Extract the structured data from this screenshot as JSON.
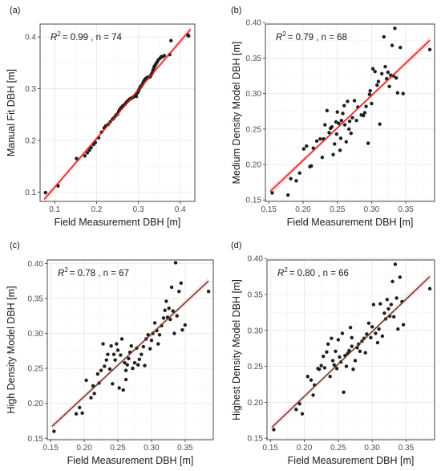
{
  "chart_data": [
    {
      "type": "scatter",
      "panel_tag": "(a)",
      "r2_label": "R",
      "r2_sup": "2",
      "r2_value": "= 0.99 , n =  74",
      "xlabel": "Field Measurement DBH [m]",
      "ylabel": "Manual Fit DBH [m]",
      "xlim": [
        0.065,
        0.435
      ],
      "ylim": [
        0.082,
        0.425
      ],
      "xticks": [
        0.1,
        0.2,
        0.3,
        0.4
      ],
      "yticks": [
        0.1,
        0.2,
        0.3,
        0.4
      ],
      "xtick_labels": [
        "0.1",
        "0.2",
        "0.3",
        "0.4"
      ],
      "ytick_labels": [
        "0.1",
        "0.2",
        "0.3",
        "0.4"
      ],
      "grid": true,
      "line_color": "#e31a1c",
      "band_color": "#f6c7c7",
      "fit": {
        "x0": 0.075,
        "y0": 0.086,
        "x1": 0.425,
        "y1": 0.415
      },
      "points": [
        [
          0.078,
          0.099
        ],
        [
          0.108,
          0.112
        ],
        [
          0.152,
          0.165
        ],
        [
          0.172,
          0.17
        ],
        [
          0.178,
          0.176
        ],
        [
          0.183,
          0.181
        ],
        [
          0.187,
          0.186
        ],
        [
          0.193,
          0.192
        ],
        [
          0.197,
          0.196
        ],
        [
          0.205,
          0.205
        ],
        [
          0.212,
          0.216
        ],
        [
          0.218,
          0.224
        ],
        [
          0.222,
          0.228
        ],
        [
          0.228,
          0.231
        ],
        [
          0.233,
          0.236
        ],
        [
          0.238,
          0.241
        ],
        [
          0.241,
          0.243
        ],
        [
          0.245,
          0.247
        ],
        [
          0.248,
          0.25
        ],
        [
          0.25,
          0.251
        ],
        [
          0.253,
          0.256
        ],
        [
          0.255,
          0.259
        ],
        [
          0.258,
          0.263
        ],
        [
          0.262,
          0.266
        ],
        [
          0.265,
          0.268
        ],
        [
          0.268,
          0.27
        ],
        [
          0.271,
          0.273
        ],
        [
          0.273,
          0.275
        ],
        [
          0.276,
          0.277
        ],
        [
          0.278,
          0.279
        ],
        [
          0.281,
          0.281
        ],
        [
          0.283,
          0.281
        ],
        [
          0.286,
          0.283
        ],
        [
          0.288,
          0.284
        ],
        [
          0.291,
          0.286
        ],
        [
          0.293,
          0.288
        ],
        [
          0.295,
          0.29
        ],
        [
          0.297,
          0.292
        ],
        [
          0.299,
          0.293
        ],
        [
          0.3,
          0.296
        ],
        [
          0.302,
          0.299
        ],
        [
          0.304,
          0.302
        ],
        [
          0.305,
          0.304
        ],
        [
          0.307,
          0.305
        ],
        [
          0.309,
          0.308
        ],
        [
          0.311,
          0.31
        ],
        [
          0.312,
          0.313
        ],
        [
          0.314,
          0.316
        ],
        [
          0.316,
          0.318
        ],
        [
          0.318,
          0.32
        ],
        [
          0.32,
          0.321
        ],
        [
          0.322,
          0.322
        ],
        [
          0.325,
          0.322
        ],
        [
          0.328,
          0.323
        ],
        [
          0.33,
          0.326
        ],
        [
          0.332,
          0.329
        ],
        [
          0.334,
          0.332
        ],
        [
          0.335,
          0.336
        ],
        [
          0.337,
          0.34
        ],
        [
          0.338,
          0.343
        ],
        [
          0.34,
          0.345
        ],
        [
          0.342,
          0.348
        ],
        [
          0.345,
          0.352
        ],
        [
          0.348,
          0.356
        ],
        [
          0.352,
          0.359
        ],
        [
          0.355,
          0.362
        ],
        [
          0.358,
          0.362
        ],
        [
          0.362,
          0.364
        ],
        [
          0.375,
          0.366
        ],
        [
          0.378,
          0.393
        ],
        [
          0.418,
          0.404
        ],
        [
          0.42,
          0.402
        ],
        [
          0.295,
          0.285
        ],
        [
          0.262,
          0.265
        ]
      ]
    },
    {
      "type": "scatter",
      "panel_tag": "(b)",
      "r2_label": "R",
      "r2_sup": "2",
      "r2_value": "= 0.79 , n =  68",
      "xlabel": "Field Measurement DBH [m]",
      "ylabel": "Medium Density Model DBH [m]",
      "xlim": [
        0.145,
        0.392
      ],
      "ylim": [
        0.148,
        0.398
      ],
      "xticks": [
        0.15,
        0.2,
        0.25,
        0.3,
        0.35
      ],
      "yticks": [
        0.15,
        0.2,
        0.25,
        0.3,
        0.35,
        0.4
      ],
      "xtick_labels": [
        "0.15",
        "0.20",
        "0.25",
        "0.30",
        "0.35"
      ],
      "ytick_labels": [
        "0.15",
        "0.20",
        "0.25",
        "0.30",
        "0.35",
        "0.40"
      ],
      "grid": true,
      "line_color": "#e31a1c",
      "band_color": "#f6c7c7",
      "fit": {
        "x0": 0.152,
        "y0": 0.162,
        "x1": 0.385,
        "y1": 0.375
      },
      "points": [
        [
          0.155,
          0.16
        ],
        [
          0.178,
          0.157
        ],
        [
          0.182,
          0.18
        ],
        [
          0.19,
          0.177
        ],
        [
          0.195,
          0.188
        ],
        [
          0.201,
          0.222
        ],
        [
          0.205,
          0.226
        ],
        [
          0.21,
          0.197
        ],
        [
          0.212,
          0.198
        ],
        [
          0.215,
          0.223
        ],
        [
          0.22,
          0.233
        ],
        [
          0.225,
          0.236
        ],
        [
          0.228,
          0.21
        ],
        [
          0.23,
          0.236
        ],
        [
          0.232,
          0.256
        ],
        [
          0.235,
          0.276
        ],
        [
          0.238,
          0.245
        ],
        [
          0.24,
          0.251
        ],
        [
          0.242,
          0.253
        ],
        [
          0.244,
          0.214
        ],
        [
          0.246,
          0.229
        ],
        [
          0.248,
          0.26
        ],
        [
          0.249,
          0.243
        ],
        [
          0.25,
          0.274
        ],
        [
          0.252,
          0.258
        ],
        [
          0.254,
          0.22
        ],
        [
          0.255,
          0.237
        ],
        [
          0.256,
          0.262
        ],
        [
          0.258,
          0.272
        ],
        [
          0.26,
          0.283
        ],
        [
          0.261,
          0.256
        ],
        [
          0.263,
          0.232
        ],
        [
          0.265,
          0.289
        ],
        [
          0.267,
          0.25
        ],
        [
          0.268,
          0.261
        ],
        [
          0.27,
          0.244
        ],
        [
          0.272,
          0.266
        ],
        [
          0.275,
          0.29
        ],
        [
          0.278,
          0.262
        ],
        [
          0.28,
          0.281
        ],
        [
          0.285,
          0.27
        ],
        [
          0.288,
          0.269
        ],
        [
          0.29,
          0.273
        ],
        [
          0.292,
          0.282
        ],
        [
          0.295,
          0.23
        ],
        [
          0.297,
          0.299
        ],
        [
          0.298,
          0.304
        ],
        [
          0.3,
          0.286
        ],
        [
          0.302,
          0.335
        ],
        [
          0.305,
          0.331
        ],
        [
          0.308,
          0.312
        ],
        [
          0.31,
          0.317
        ],
        [
          0.312,
          0.257
        ],
        [
          0.315,
          0.328
        ],
        [
          0.318,
          0.38
        ],
        [
          0.32,
          0.338
        ],
        [
          0.322,
          0.321
        ],
        [
          0.324,
          0.33
        ],
        [
          0.326,
          0.31
        ],
        [
          0.328,
          0.326
        ],
        [
          0.33,
          0.368
        ],
        [
          0.332,
          0.325
        ],
        [
          0.334,
          0.392
        ],
        [
          0.336,
          0.322
        ],
        [
          0.338,
          0.301
        ],
        [
          0.342,
          0.365
        ],
        [
          0.346,
          0.3
        ],
        [
          0.385,
          0.362
        ]
      ]
    },
    {
      "type": "scatter",
      "panel_tag": "(c)",
      "r2_label": "R",
      "r2_sup": "2",
      "r2_value": "= 0.78 , n =  67",
      "xlabel": "Field Measurement DBH [m]",
      "ylabel": "High Density Model DBH [m]",
      "xlim": [
        0.145,
        0.392
      ],
      "ylim": [
        0.148,
        0.405
      ],
      "xticks": [
        0.15,
        0.2,
        0.25,
        0.3,
        0.35
      ],
      "yticks": [
        0.15,
        0.2,
        0.25,
        0.3,
        0.35,
        0.4
      ],
      "xtick_labels": [
        "0.15",
        "0.20",
        "0.25",
        "0.30",
        "0.35"
      ],
      "ytick_labels": [
        "0.15",
        "0.20",
        "0.25",
        "0.30",
        "0.35",
        "0.40"
      ],
      "grid": true,
      "line_color": "#6b3a1f",
      "band_color": "#f6d3dc",
      "fit": {
        "x0": 0.152,
        "y0": 0.167,
        "x1": 0.385,
        "y1": 0.375
      },
      "points": [
        [
          0.155,
          0.16
        ],
        [
          0.188,
          0.185
        ],
        [
          0.193,
          0.194
        ],
        [
          0.197,
          0.186
        ],
        [
          0.203,
          0.233
        ],
        [
          0.21,
          0.208
        ],
        [
          0.213,
          0.225
        ],
        [
          0.215,
          0.214
        ],
        [
          0.22,
          0.242
        ],
        [
          0.222,
          0.229
        ],
        [
          0.225,
          0.247
        ],
        [
          0.228,
          0.285
        ],
        [
          0.23,
          0.253
        ],
        [
          0.233,
          0.262
        ],
        [
          0.235,
          0.27
        ],
        [
          0.238,
          0.249
        ],
        [
          0.24,
          0.282
        ],
        [
          0.242,
          0.228
        ],
        [
          0.244,
          0.27
        ],
        [
          0.246,
          0.262
        ],
        [
          0.248,
          0.285
        ],
        [
          0.25,
          0.276
        ],
        [
          0.252,
          0.222
        ],
        [
          0.254,
          0.269
        ],
        [
          0.256,
          0.292
        ],
        [
          0.258,
          0.219
        ],
        [
          0.26,
          0.258
        ],
        [
          0.262,
          0.234
        ],
        [
          0.264,
          0.255
        ],
        [
          0.266,
          0.264
        ],
        [
          0.268,
          0.273
        ],
        [
          0.27,
          0.282
        ],
        [
          0.272,
          0.25
        ],
        [
          0.275,
          0.258
        ],
        [
          0.278,
          0.279
        ],
        [
          0.28,
          0.255
        ],
        [
          0.282,
          0.263
        ],
        [
          0.285,
          0.27
        ],
        [
          0.288,
          0.281
        ],
        [
          0.29,
          0.254
        ],
        [
          0.292,
          0.292
        ],
        [
          0.295,
          0.298
        ],
        [
          0.298,
          0.278
        ],
        [
          0.3,
          0.29
        ],
        [
          0.302,
          0.3
        ],
        [
          0.305,
          0.315
        ],
        [
          0.308,
          0.304
        ],
        [
          0.31,
          0.285
        ],
        [
          0.312,
          0.298
        ],
        [
          0.315,
          0.311
        ],
        [
          0.318,
          0.322
        ],
        [
          0.32,
          0.333
        ],
        [
          0.322,
          0.346
        ],
        [
          0.324,
          0.323
        ],
        [
          0.326,
          0.336
        ],
        [
          0.328,
          0.32
        ],
        [
          0.33,
          0.366
        ],
        [
          0.332,
          0.332
        ],
        [
          0.334,
          0.3
        ],
        [
          0.336,
          0.401
        ],
        [
          0.338,
          0.325
        ],
        [
          0.341,
          0.36
        ],
        [
          0.344,
          0.372
        ],
        [
          0.346,
          0.305
        ],
        [
          0.35,
          0.312
        ],
        [
          0.385,
          0.36
        ],
        [
          0.262,
          0.247
        ]
      ]
    },
    {
      "type": "scatter",
      "panel_tag": "(d)",
      "r2_label": "R",
      "r2_sup": "2",
      "r2_value": "= 0.80 , n =  66",
      "xlabel": "Field Measurement DBH [m]",
      "ylabel": "Highest Density Model DBH [m]",
      "xlim": [
        0.145,
        0.392
      ],
      "ylim": [
        0.148,
        0.398
      ],
      "xticks": [
        0.15,
        0.2,
        0.25,
        0.3,
        0.35
      ],
      "yticks": [
        0.15,
        0.2,
        0.25,
        0.3,
        0.35,
        0.4
      ],
      "xtick_labels": [
        "0.15",
        "0.20",
        "0.25",
        "0.30",
        "0.35"
      ],
      "ytick_labels": [
        "0.15",
        "0.20",
        "0.25",
        "0.30",
        "0.35",
        "0.40"
      ],
      "grid": true,
      "line_color": "#6b3a1f",
      "band_color": "#f6d3dc",
      "fit": {
        "x0": 0.152,
        "y0": 0.165,
        "x1": 0.385,
        "y1": 0.375
      },
      "points": [
        [
          0.155,
          0.162
        ],
        [
          0.188,
          0.19
        ],
        [
          0.193,
          0.198
        ],
        [
          0.197,
          0.184
        ],
        [
          0.205,
          0.236
        ],
        [
          0.21,
          0.231
        ],
        [
          0.213,
          0.21
        ],
        [
          0.215,
          0.224
        ],
        [
          0.22,
          0.247
        ],
        [
          0.222,
          0.246
        ],
        [
          0.225,
          0.251
        ],
        [
          0.228,
          0.264
        ],
        [
          0.23,
          0.248
        ],
        [
          0.233,
          0.27
        ],
        [
          0.235,
          0.281
        ],
        [
          0.238,
          0.236
        ],
        [
          0.24,
          0.289
        ],
        [
          0.242,
          0.258
        ],
        [
          0.244,
          0.252
        ],
        [
          0.246,
          0.271
        ],
        [
          0.248,
          0.247
        ],
        [
          0.25,
          0.287
        ],
        [
          0.252,
          0.263
        ],
        [
          0.254,
          0.256
        ],
        [
          0.256,
          0.296
        ],
        [
          0.258,
          0.214
        ],
        [
          0.26,
          0.265
        ],
        [
          0.262,
          0.25
        ],
        [
          0.264,
          0.268
        ],
        [
          0.266,
          0.272
        ],
        [
          0.268,
          0.304
        ],
        [
          0.27,
          0.278
        ],
        [
          0.272,
          0.246
        ],
        [
          0.275,
          0.258
        ],
        [
          0.278,
          0.276
        ],
        [
          0.28,
          0.281
        ],
        [
          0.282,
          0.271
        ],
        [
          0.285,
          0.285
        ],
        [
          0.288,
          0.289
        ],
        [
          0.29,
          0.269
        ],
        [
          0.292,
          0.295
        ],
        [
          0.295,
          0.31
        ],
        [
          0.298,
          0.29
        ],
        [
          0.3,
          0.305
        ],
        [
          0.302,
          0.336
        ],
        [
          0.305,
          0.296
        ],
        [
          0.308,
          0.283
        ],
        [
          0.31,
          0.302
        ],
        [
          0.312,
          0.337
        ],
        [
          0.315,
          0.292
        ],
        [
          0.318,
          0.324
        ],
        [
          0.32,
          0.316
        ],
        [
          0.322,
          0.343
        ],
        [
          0.324,
          0.33
        ],
        [
          0.326,
          0.32
        ],
        [
          0.328,
          0.336
        ],
        [
          0.33,
          0.368
        ],
        [
          0.332,
          0.319
        ],
        [
          0.334,
          0.392
        ],
        [
          0.336,
          0.345
        ],
        [
          0.338,
          0.302
        ],
        [
          0.341,
          0.374
        ],
        [
          0.344,
          0.34
        ],
        [
          0.346,
          0.308
        ],
        [
          0.385,
          0.358
        ],
        [
          0.27,
          0.29
        ]
      ]
    }
  ]
}
